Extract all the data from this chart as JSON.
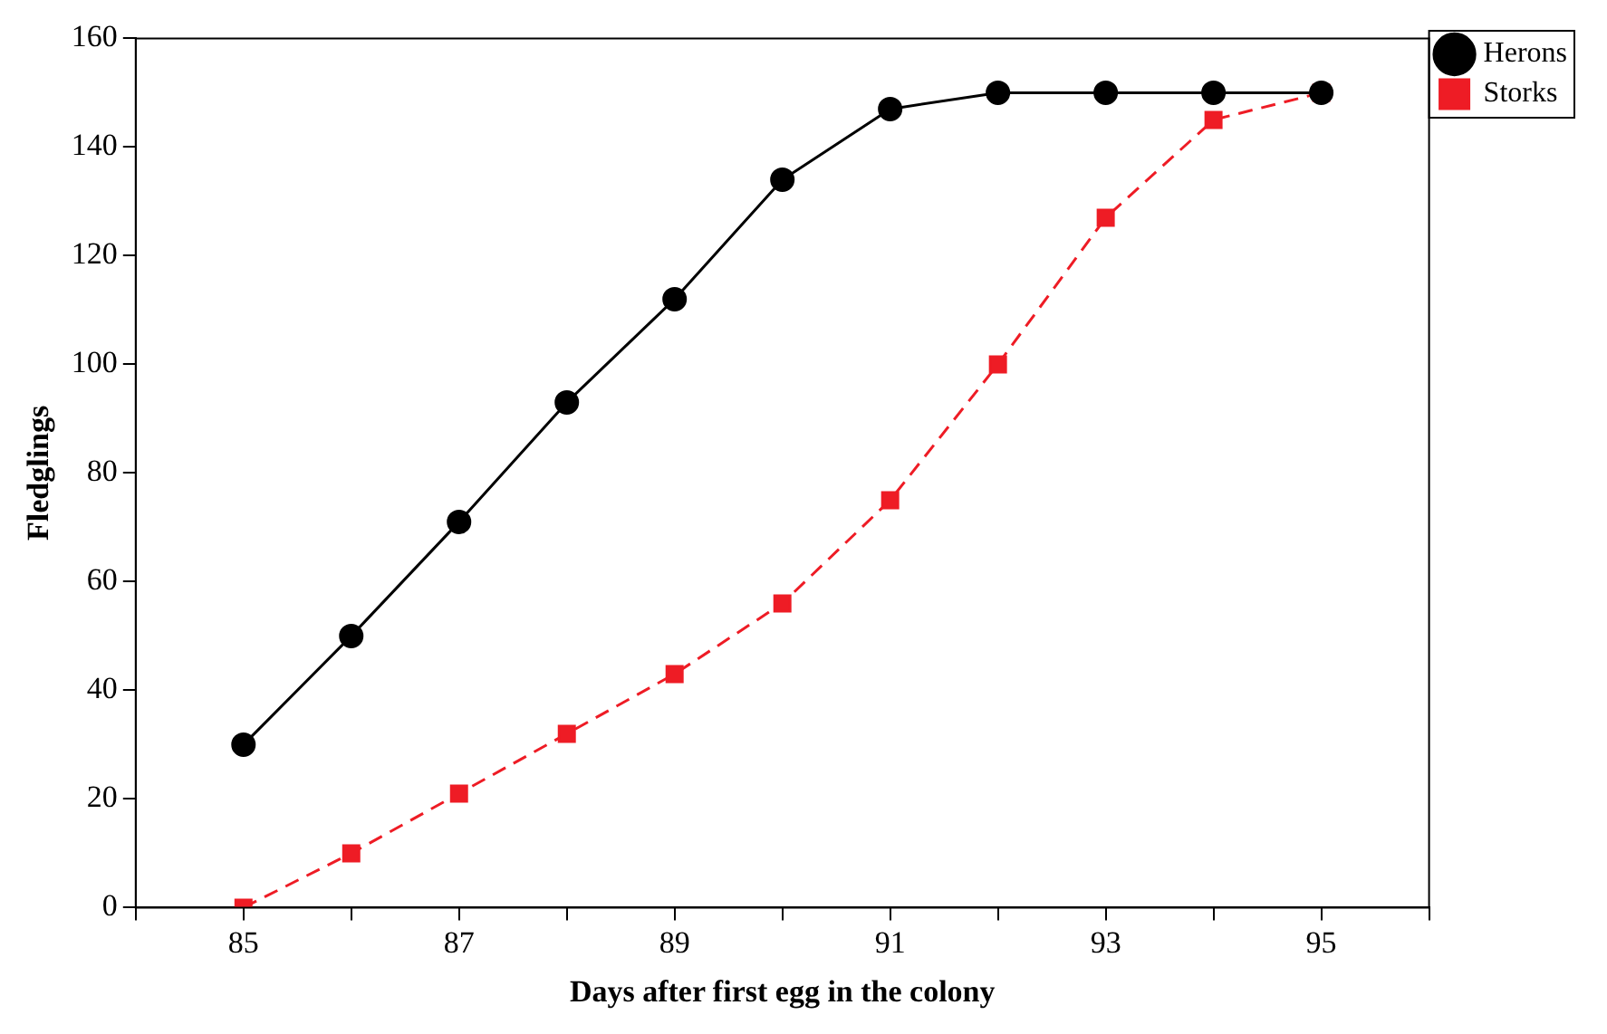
{
  "chart_data": {
    "type": "line",
    "xlabel": "Days after first egg in the colony",
    "ylabel": "Fledglings",
    "x": [
      85,
      86,
      87,
      88,
      89,
      90,
      91,
      92,
      93,
      94,
      95
    ],
    "series": [
      {
        "name": "Herons",
        "color": "#000000",
        "marker": "circle",
        "line_style": "solid",
        "values": [
          30,
          50,
          71,
          93,
          112,
          134,
          147,
          150,
          150,
          150,
          150
        ]
      },
      {
        "name": "Storks",
        "color": "#ee1c25",
        "marker": "square",
        "line_style": "dashed",
        "values": [
          0,
          10,
          21,
          32,
          43,
          56,
          75,
          100,
          127,
          145,
          150
        ]
      }
    ],
    "xlim": [
      84,
      96
    ],
    "xticks": [
      {
        "value": 84,
        "label": null
      },
      85,
      {
        "value": 86,
        "label": null
      },
      87,
      {
        "value": 88,
        "label": null
      },
      89,
      {
        "value": 90,
        "label": null
      },
      91,
      {
        "value": 92,
        "label": null
      },
      93,
      {
        "value": 94,
        "label": null
      },
      95,
      {
        "value": 96,
        "label": null
      }
    ],
    "ylim": [
      0,
      160
    ],
    "yticks": [
      0,
      20,
      40,
      60,
      80,
      100,
      120,
      140,
      160
    ],
    "grid": false,
    "legend": "top right"
  }
}
